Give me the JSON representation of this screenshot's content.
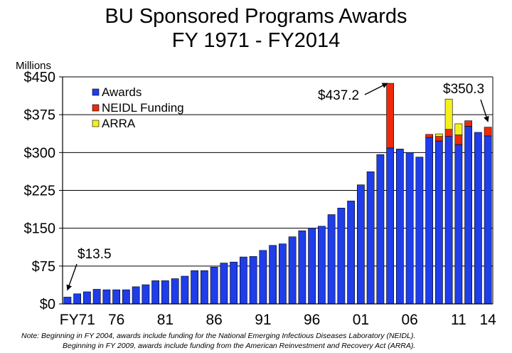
{
  "title_line1": "BU Sponsored Programs Awards",
  "title_line2": "FY 1971 - FY2014",
  "note_line1": "Note:  Beginning in FY 2004, awards include funding for the National Emerging Infectious Diseases Laboratory (NEIDL).",
  "note_line2": "Beginning in FY 2009, awards include funding from the American Reinvestment and Recovery Act (ARRA).",
  "colors": {
    "awards": "#1f3de8",
    "neidl": "#ee2a0b",
    "arra": "#f5f019",
    "outline": "#000000"
  },
  "chart_data": {
    "type": "bar",
    "stacked": true,
    "unit_label": "Millions",
    "ylim": [
      0,
      450
    ],
    "ytick_labels": [
      "$0",
      "$75",
      "$150",
      "$225",
      "$300",
      "$375",
      "$450"
    ],
    "ytick_values": [
      0,
      75,
      150,
      225,
      300,
      375,
      450
    ],
    "grid": true,
    "legend_position": "top-left",
    "xtick_labels": [
      {
        "label": "FY71",
        "year": 1971
      },
      {
        "label": "76",
        "year": 1976
      },
      {
        "label": "81",
        "year": 1981
      },
      {
        "label": "86",
        "year": 1986
      },
      {
        "label": "91",
        "year": 1991
      },
      {
        "label": "96",
        "year": 1996
      },
      {
        "label": "01",
        "year": 2001
      },
      {
        "label": "06",
        "year": 2006
      },
      {
        "label": "11",
        "year": 2011
      },
      {
        "label": "14",
        "year": 2014
      }
    ],
    "categories": [
      1971,
      1972,
      1973,
      1974,
      1975,
      1976,
      1977,
      1978,
      1979,
      1980,
      1981,
      1982,
      1983,
      1984,
      1985,
      1986,
      1987,
      1988,
      1989,
      1990,
      1991,
      1992,
      1993,
      1994,
      1995,
      1996,
      1997,
      1998,
      1999,
      2000,
      2001,
      2002,
      2003,
      2004,
      2005,
      2006,
      2007,
      2008,
      2009,
      2010,
      2011,
      2012,
      2013,
      2014
    ],
    "series": [
      {
        "name": "Awards",
        "color": "#1f3de8",
        "values": [
          13.5,
          20,
          24,
          29,
          28,
          28,
          28,
          34,
          38,
          46,
          46,
          50,
          55,
          66,
          66,
          73,
          81,
          83,
          93,
          94,
          106,
          116,
          119,
          133,
          145,
          150,
          154,
          177,
          190,
          204,
          236,
          262,
          296,
          309,
          307,
          300,
          291,
          330,
          323,
          332,
          316,
          352,
          340,
          333
        ]
      },
      {
        "name": "NEIDL Funding",
        "color": "#ee2a0b",
        "values": [
          0,
          0,
          0,
          0,
          0,
          0,
          0,
          0,
          0,
          0,
          0,
          0,
          0,
          0,
          0,
          0,
          0,
          0,
          0,
          0,
          0,
          0,
          0,
          0,
          0,
          0,
          0,
          0,
          0,
          0,
          0,
          0,
          0,
          128.2,
          0,
          0,
          0,
          6,
          9,
          14,
          19,
          11,
          0,
          17.3
        ]
      },
      {
        "name": "ARRA",
        "color": "#f5f019",
        "values": [
          0,
          0,
          0,
          0,
          0,
          0,
          0,
          0,
          0,
          0,
          0,
          0,
          0,
          0,
          0,
          0,
          0,
          0,
          0,
          0,
          0,
          0,
          0,
          0,
          0,
          0,
          0,
          0,
          0,
          0,
          0,
          0,
          0,
          0,
          0,
          0,
          0,
          0,
          5,
          60,
          22,
          0,
          0,
          0
        ]
      }
    ],
    "annotations": [
      {
        "text": "$13.5",
        "year": 1971,
        "value": 13.5
      },
      {
        "text": "$437.2",
        "year": 2004,
        "value": 437.2
      },
      {
        "text": "$350.3",
        "year": 2014,
        "value": 350.3
      }
    ]
  }
}
